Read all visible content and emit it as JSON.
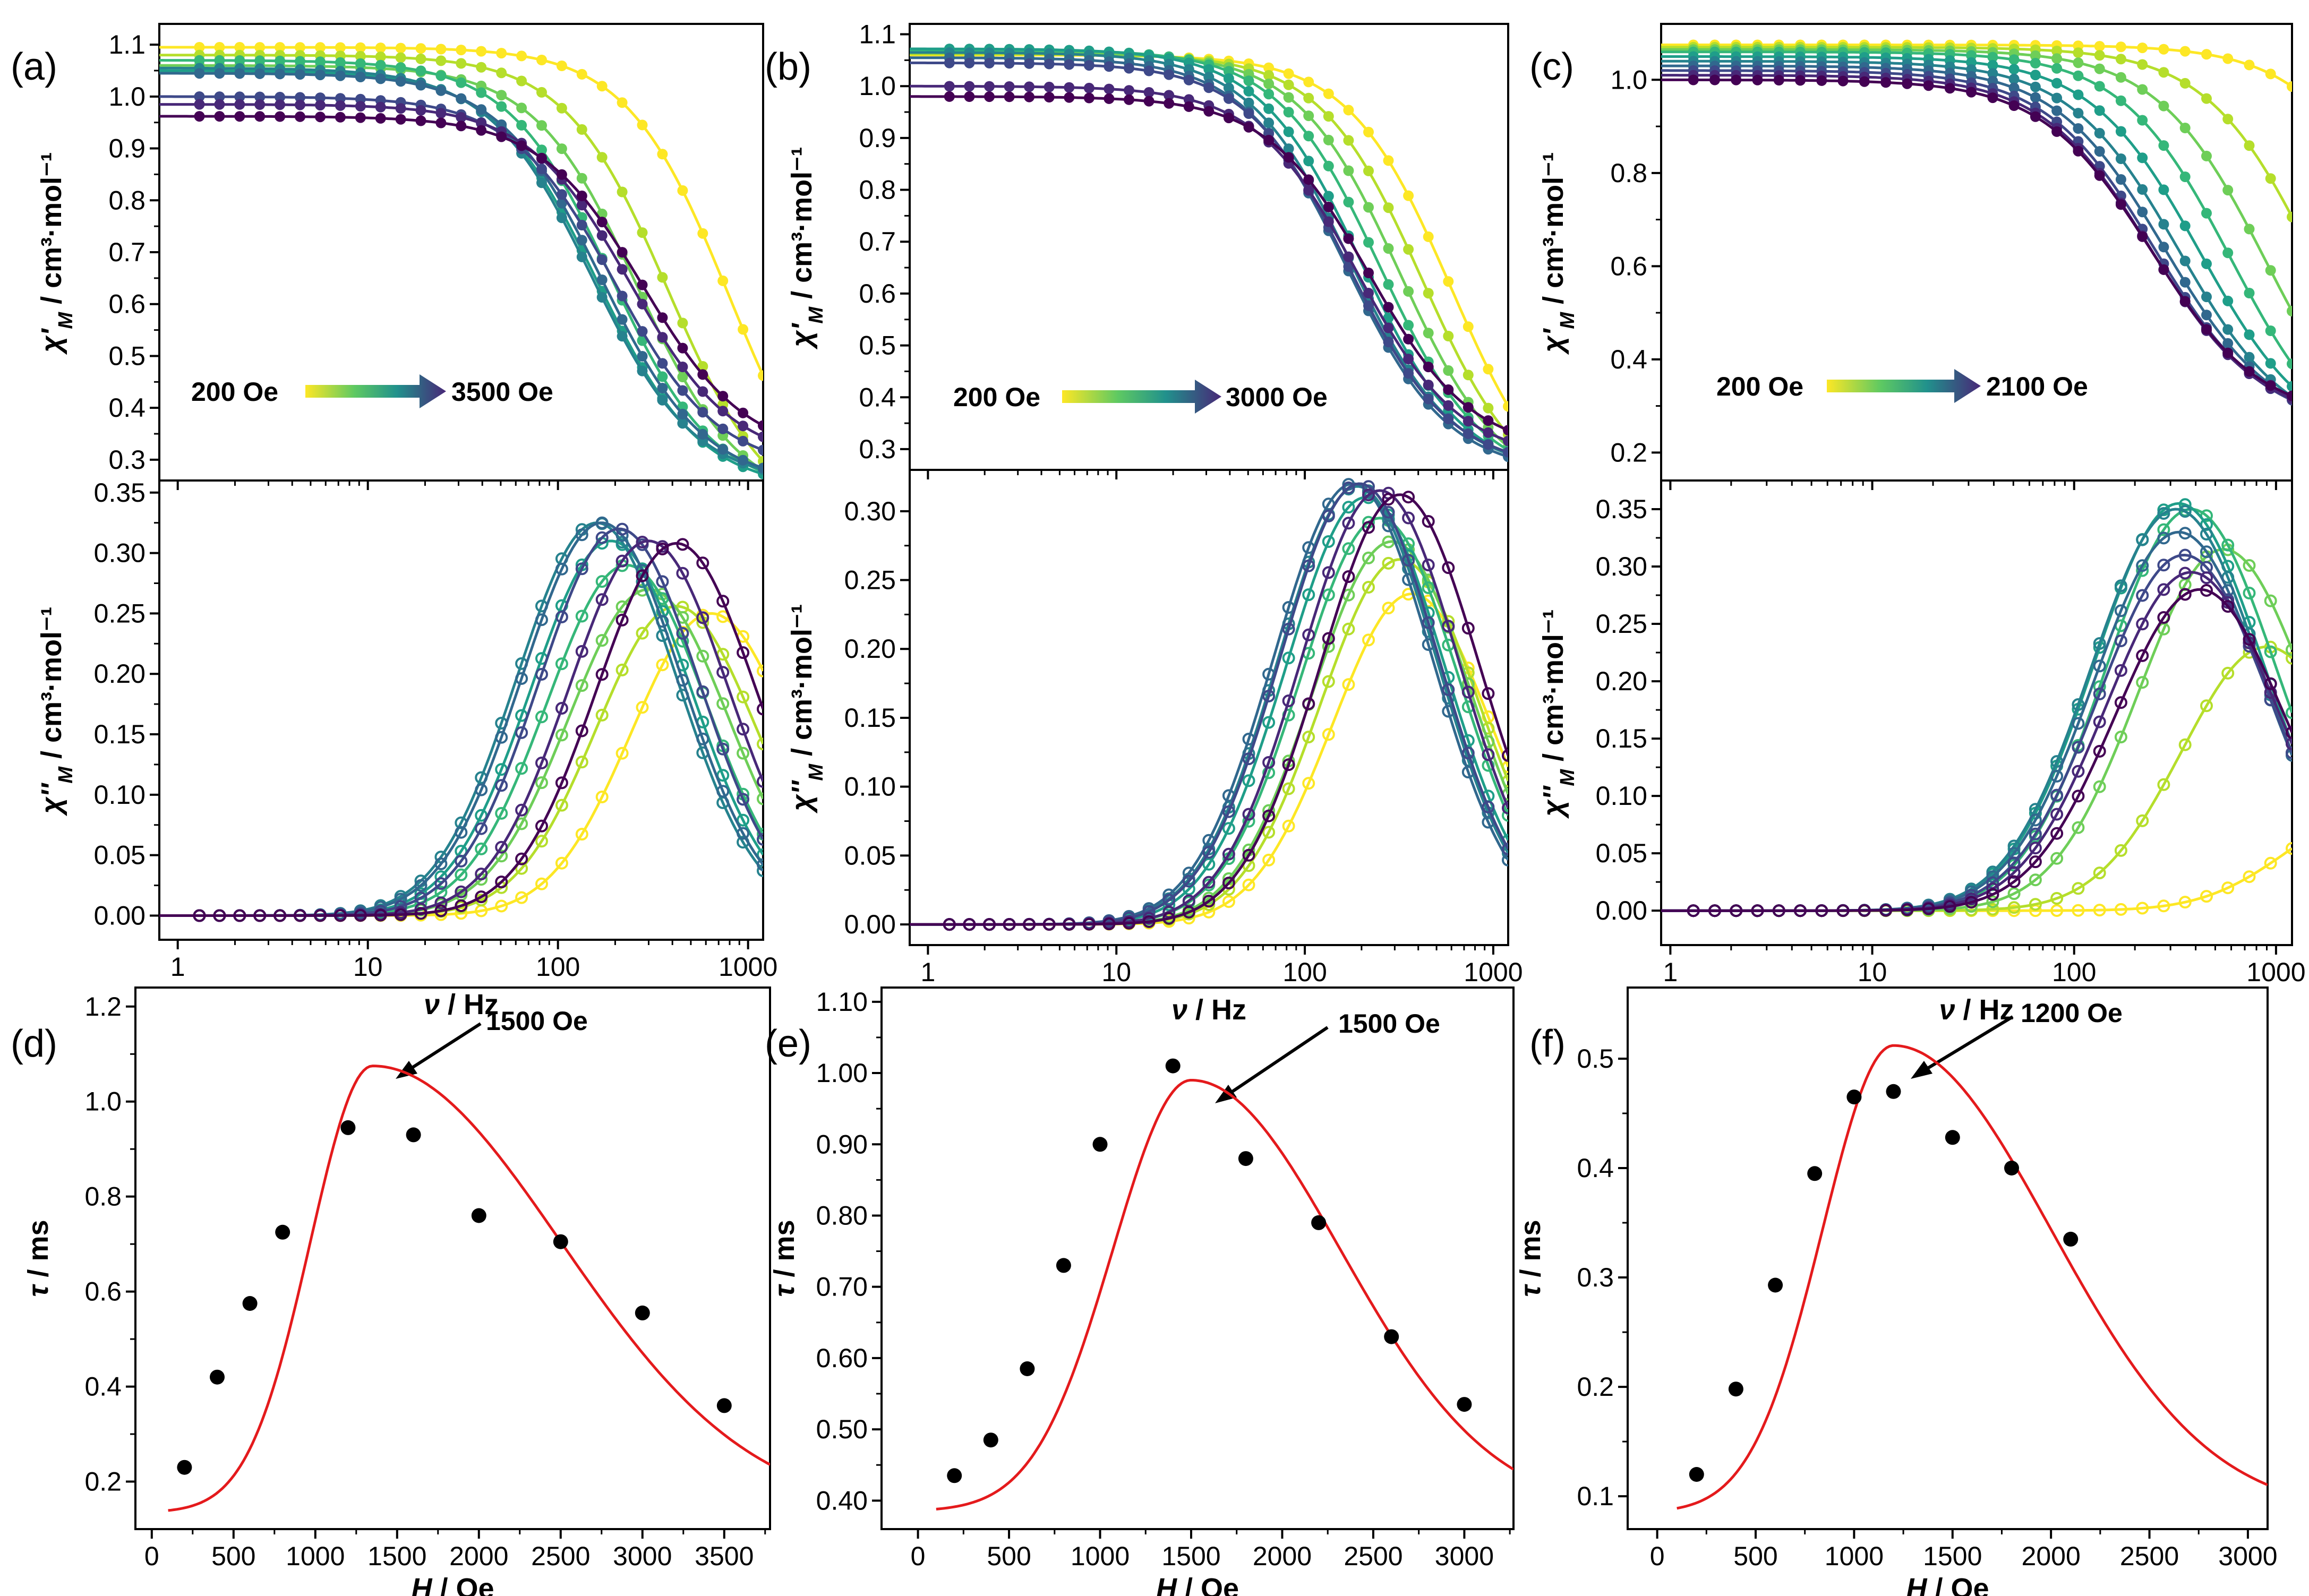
{
  "figure": {
    "panel_labels": [
      "(a)",
      "(b)",
      "(c)",
      "(d)",
      "(e)",
      "(f)"
    ],
    "field_ranges": [
      {
        "start": "200 Oe",
        "end": "3500 Oe"
      },
      {
        "start": "200 Oe",
        "end": "3000 Oe"
      },
      {
        "start": "200 Oe",
        "end": "2100 Oe"
      }
    ],
    "peak_annotations": [
      "1500 Oe",
      "1500 Oe",
      "1200 Oe"
    ],
    "axis_labels": {
      "chi_prime": "χ'M / cm³·mol⁻¹",
      "chi_double": "χ''M / cm³·mol⁻¹",
      "freq": "ν / Hz",
      "tau": "τ / ms",
      "field": "H / Oe"
    },
    "colors": {
      "fit": "#e41a1c",
      "points": "#000000",
      "arrow": "#000000"
    },
    "colormap": [
      "#fde725",
      "#b5de2b",
      "#6ece58",
      "#35b779",
      "#1f9e89",
      "#26828e",
      "#31688e",
      "#3e4989",
      "#482878",
      "#440154"
    ]
  },
  "chart_data": [
    {
      "panel": "(a) top",
      "type": "line",
      "xscale": "log",
      "xlim": [
        0.8,
        1200
      ],
      "ylim": [
        0.26,
        1.14
      ],
      "yticks": [
        0.3,
        0.4,
        0.5,
        0.6,
        0.7,
        0.8,
        0.9,
        1.0,
        1.1
      ],
      "ylabel": "χ'M / cm³·mol⁻¹",
      "model": {
        "chi_in": [
          1.095,
          1.08,
          1.06,
          1.07,
          1.05,
          1.055,
          1.045,
          1.0,
          0.985,
          0.962
        ],
        "fc": [
          800,
          380,
          260,
          190,
          160,
          150,
          170,
          200,
          240,
          280
        ],
        "drop": [
          0.88,
          0.84,
          0.8,
          0.78,
          0.77,
          0.76,
          0.76,
          0.72,
          0.7,
          0.68
        ]
      }
    },
    {
      "panel": "(a) bottom",
      "type": "line",
      "xscale": "log",
      "xlim": [
        0.8,
        1200
      ],
      "ylim": [
        -0.02,
        0.36
      ],
      "yticks": [
        0.0,
        0.05,
        0.1,
        0.15,
        0.2,
        0.25,
        0.3,
        0.35
      ],
      "xticks": [
        1,
        10,
        100,
        1000
      ],
      "xlabel": "ν / Hz",
      "ylabel": "χ''M / cm³·mol⁻¹",
      "peak_freq_hz": [
        640,
        420,
        300,
        230,
        190,
        160,
        170,
        210,
        300,
        420
      ],
      "peak_height": [
        0.25,
        0.256,
        0.27,
        0.29,
        0.31,
        0.325,
        0.325,
        0.32,
        0.31,
        0.308
      ]
    },
    {
      "panel": "(b) top",
      "type": "line",
      "xscale": "log",
      "xlim": [
        0.8,
        1200
      ],
      "ylim": [
        0.26,
        1.12
      ],
      "yticks": [
        0.3,
        0.4,
        0.5,
        0.6,
        0.7,
        0.8,
        0.9,
        1.0,
        1.1
      ],
      "ylabel": "χ'M / cm³·mol⁻¹",
      "model": {
        "chi_in": [
          1.06,
          1.062,
          1.065,
          1.07,
          1.072,
          1.065,
          1.055,
          1.045,
          1.0,
          0.98
        ],
        "fc": [
          600,
          420,
          320,
          250,
          200,
          175,
          165,
          170,
          190,
          220
        ],
        "drop": [
          0.85,
          0.82,
          0.8,
          0.78,
          0.77,
          0.76,
          0.76,
          0.75,
          0.72,
          0.7
        ]
      }
    },
    {
      "panel": "(b) bottom",
      "type": "line",
      "xscale": "log",
      "xlim": [
        0.8,
        1200
      ],
      "ylim": [
        -0.015,
        0.33
      ],
      "yticks": [
        0.0,
        0.05,
        0.1,
        0.15,
        0.2,
        0.25,
        0.3
      ],
      "xticks": [
        1,
        10,
        100,
        1000
      ],
      "xlabel": "ν / Hz",
      "ylabel": "χ''M / cm³·mol⁻¹",
      "peak_freq_hz": [
        370,
        320,
        290,
        250,
        210,
        190,
        180,
        195,
        250,
        320
      ],
      "peak_height": [
        0.24,
        0.265,
        0.278,
        0.295,
        0.31,
        0.318,
        0.32,
        0.32,
        0.315,
        0.312
      ]
    },
    {
      "panel": "(c) top",
      "type": "line",
      "xscale": "log",
      "xlim": [
        0.9,
        1200
      ],
      "ylim": [
        0.14,
        1.12
      ],
      "yticks": [
        0.2,
        0.4,
        0.6,
        0.8,
        1.0
      ],
      "ylabel": "χ'M / cm³·mol⁻¹",
      "model": {
        "chi_in": [
          1.075,
          1.07,
          1.065,
          1.06,
          1.05,
          1.04,
          1.03,
          1.02,
          1.01,
          1.0
        ],
        "fc": [
          5000,
          1600,
          900,
          600,
          420,
          330,
          280,
          250,
          240,
          240
        ],
        "drop": [
          0.9,
          0.88,
          0.86,
          0.84,
          0.8,
          0.78,
          0.76,
          0.75,
          0.74,
          0.73
        ]
      }
    },
    {
      "panel": "(c) bottom",
      "type": "line",
      "xscale": "log",
      "xlim": [
        0.9,
        1200
      ],
      "ylim": [
        -0.03,
        0.375
      ],
      "yticks": [
        0.0,
        0.05,
        0.1,
        0.15,
        0.2,
        0.25,
        0.3,
        0.35
      ],
      "xticks": [
        1,
        10,
        100,
        1000
      ],
      "xlabel": "ν / Hz",
      "ylabel": "χ''M / cm³·mol⁻¹",
      "peak_freq_hz": [
        3000,
        900,
        550,
        380,
        330,
        320,
        330,
        350,
        380,
        420
      ],
      "peak_height": [
        0.085,
        0.23,
        0.315,
        0.35,
        0.355,
        0.35,
        0.33,
        0.31,
        0.295,
        0.28
      ]
    },
    {
      "panel": "(d)",
      "type": "scatter",
      "xlim": [
        -100,
        3780
      ],
      "ylim": [
        0.1,
        1.24
      ],
      "xticks": [
        0,
        500,
        1000,
        1500,
        2000,
        2500,
        3000,
        3500
      ],
      "yticks": [
        0.2,
        0.4,
        0.6,
        0.8,
        1.0,
        1.2
      ],
      "xlabel": "H / Oe",
      "ylabel": "τ / ms",
      "x": [
        200,
        400,
        600,
        800,
        1200,
        1600,
        2000,
        2500,
        3000,
        3500
      ],
      "y": [
        0.23,
        0.42,
        0.575,
        0.725,
        0.945,
        0.93,
        0.76,
        0.705,
        0.555,
        0.36
      ],
      "fit": {
        "peak_x": 1350,
        "peak_y": 1.075,
        "base_y": 0.135,
        "sigma_left": 380,
        "sigma_right": 1150
      },
      "annotation": "1500 Oe"
    },
    {
      "panel": "(e)",
      "type": "scatter",
      "xlim": [
        -200,
        3270
      ],
      "ylim": [
        0.36,
        1.12
      ],
      "xticks": [
        0,
        500,
        1000,
        1500,
        2000,
        2500,
        3000
      ],
      "yticks": [
        0.4,
        0.5,
        0.6,
        0.7,
        0.8,
        0.9,
        1.0,
        1.1
      ],
      "xlabel": "H / Oe",
      "ylabel": "τ / ms",
      "x": [
        200,
        400,
        600,
        800,
        1000,
        1400,
        1800,
        2200,
        2600,
        3000
      ],
      "y": [
        0.435,
        0.485,
        0.585,
        0.73,
        0.9,
        1.01,
        0.88,
        0.79,
        0.63,
        0.535
      ],
      "fit": {
        "peak_x": 1500,
        "peak_y": 0.99,
        "base_y": 0.385,
        "sigma_left": 430,
        "sigma_right": 820
      },
      "annotation": "1500 Oe"
    },
    {
      "panel": "(f)",
      "type": "scatter",
      "xlim": [
        -150,
        3100
      ],
      "ylim": [
        0.07,
        0.565
      ],
      "xticks": [
        0,
        500,
        1000,
        1500,
        2000,
        2500,
        3000
      ],
      "yticks": [
        0.1,
        0.2,
        0.3,
        0.4,
        0.5
      ],
      "xlabel": "H / Oe",
      "ylabel": "τ / ms",
      "x": [
        200,
        400,
        600,
        800,
        1000,
        1200,
        1500,
        1800,
        2100
      ],
      "y": [
        0.12,
        0.198,
        0.293,
        0.395,
        0.465,
        0.47,
        0.428,
        0.4,
        0.335
      ],
      "fit": {
        "peak_x": 1200,
        "peak_y": 0.512,
        "base_y": 0.085,
        "sigma_left": 360,
        "sigma_right": 800
      },
      "annotation": "1200 Oe"
    }
  ]
}
